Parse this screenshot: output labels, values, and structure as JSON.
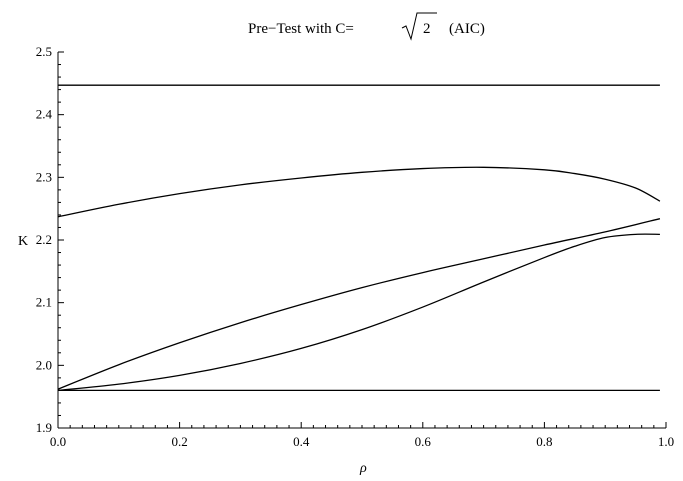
{
  "chart_data": {
    "type": "line",
    "title_prefix": "Pre−Test with C=",
    "title_radicand": "2",
    "title_suffix": "(AIC)",
    "xlabel": "ρ",
    "ylabel": "K",
    "xlim": [
      0.0,
      1.0
    ],
    "ylim": [
      1.9,
      2.5
    ],
    "grid": false,
    "x_ticks": [
      "0.0",
      "0.2",
      "0.4",
      "0.6",
      "0.8",
      "1.0"
    ],
    "y_ticks": [
      "1.9",
      "2.0",
      "2.1",
      "2.2",
      "2.3",
      "2.4",
      "2.5"
    ],
    "series": [
      {
        "x": [
          0.0,
          0.99
        ],
        "y": [
          2.447,
          2.447
        ]
      },
      {
        "x": [
          0.0,
          0.1,
          0.2,
          0.3,
          0.4,
          0.5,
          0.6,
          0.7,
          0.8,
          0.85,
          0.9,
          0.95,
          0.99
        ],
        "y": [
          2.237,
          2.257,
          2.274,
          2.288,
          2.299,
          2.308,
          2.314,
          2.316,
          2.312,
          2.306,
          2.297,
          2.283,
          2.262
        ]
      },
      {
        "x": [
          0.0,
          0.1,
          0.2,
          0.3,
          0.4,
          0.5,
          0.6,
          0.7,
          0.8,
          0.9,
          0.99
        ],
        "y": [
          1.962,
          2.001,
          2.036,
          2.068,
          2.097,
          2.124,
          2.148,
          2.17,
          2.192,
          2.213,
          2.234
        ]
      },
      {
        "x": [
          0.0,
          0.1,
          0.2,
          0.3,
          0.4,
          0.5,
          0.6,
          0.7,
          0.8,
          0.85,
          0.9,
          0.95,
          0.99
        ],
        "y": [
          1.96,
          1.97,
          1.984,
          2.003,
          2.027,
          2.057,
          2.093,
          2.133,
          2.172,
          2.19,
          2.204,
          2.209,
          2.209
        ]
      },
      {
        "x": [
          0.0,
          0.99
        ],
        "y": [
          1.96,
          1.96
        ]
      }
    ]
  }
}
